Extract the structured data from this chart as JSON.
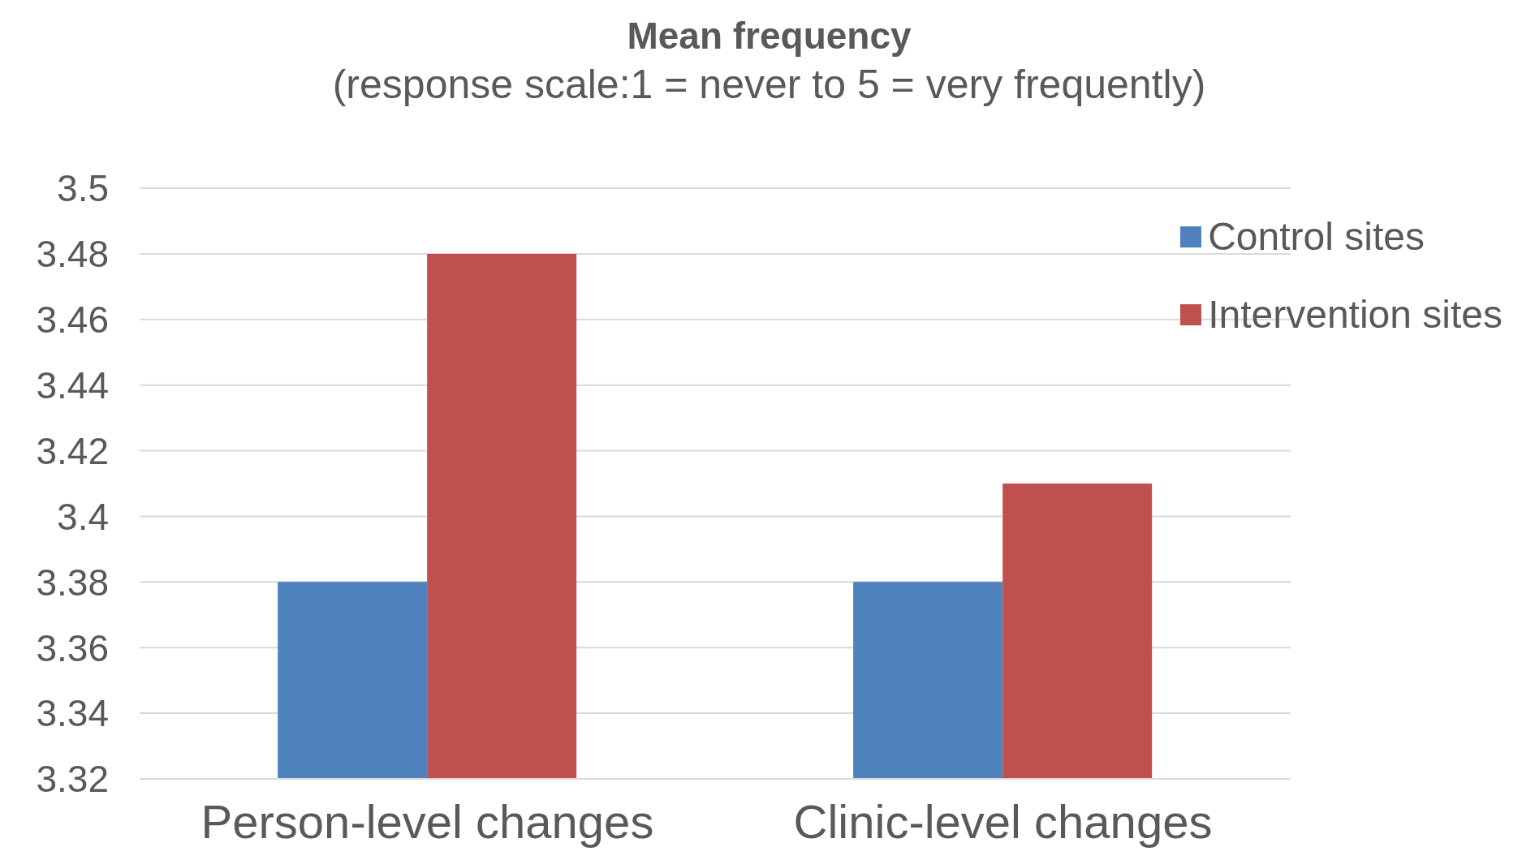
{
  "chart_data": {
    "type": "bar",
    "title": "Mean frequency",
    "subtitle": "(response scale:1 = never to 5 = very frequently)",
    "categories": [
      "Person-level changes",
      "Clinic-level changes"
    ],
    "series": [
      {
        "name": "Control sites",
        "color": "#4f81bd",
        "values": [
          3.38,
          3.38
        ]
      },
      {
        "name": "Intervention sites",
        "color": "#c0504d",
        "values": [
          3.48,
          3.41
        ]
      }
    ],
    "ylim": [
      3.32,
      3.5
    ],
    "yticks": [
      3.32,
      3.34,
      3.36,
      3.38,
      3.4,
      3.42,
      3.44,
      3.46,
      3.48,
      3.5
    ],
    "grid": "y",
    "legend": "top right"
  }
}
